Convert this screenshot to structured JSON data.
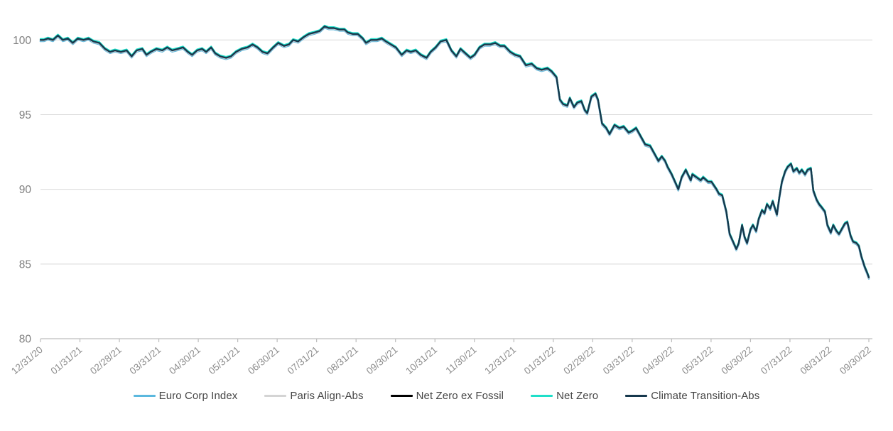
{
  "page": {
    "background_color": "#ffffff"
  },
  "chart_data": {
    "type": "line",
    "title": "",
    "xlabel": "",
    "ylabel": "",
    "grid": "horizontal",
    "legend_position": "bottom",
    "ylim": [
      80,
      102.2
    ],
    "y_ticks": [
      80,
      85,
      90,
      95,
      100
    ],
    "x_tick_labels": [
      "12/31/20",
      "01/31/21",
      "02/28/21",
      "03/31/21",
      "04/30/21",
      "05/31/21",
      "06/30/21",
      "07/31/21",
      "08/31/21",
      "09/30/21",
      "10/31/21",
      "11/30/21",
      "12/31/21",
      "01/31/22",
      "02/28/22",
      "03/31/22",
      "04/30/22",
      "05/31/22",
      "06/30/22",
      "07/31/22",
      "08/31/22",
      "09/30/22"
    ],
    "axis_color": "#bdbdbd",
    "gridline_color": "#d9d9d9",
    "tick_label_color": "#8c8c8c",
    "legend_text_color": "#464646",
    "series": [
      {
        "name": "Euro Corp Index",
        "color": "#5bb8de"
      },
      {
        "name": "Paris Align-Abs",
        "color": "#d4d4d4"
      },
      {
        "name": "Net Zero ex Fossil",
        "color": "#000000"
      },
      {
        "name": "Net Zero",
        "color": "#1fdfc9"
      },
      {
        "name": "Climate Transition-Abs",
        "color": "#16384d"
      }
    ],
    "series_overlap_note": "All five series plot within ~0.1 index points of each other for the whole period; they share the common shape below (x = fraction of time axis from 12/31/20 to 09/30/22, v = index level, base 100).",
    "points": [
      [
        0.0,
        100.0
      ],
      [
        0.004,
        100.0
      ],
      [
        0.009,
        100.1
      ],
      [
        0.015,
        100.0
      ],
      [
        0.021,
        100.3
      ],
      [
        0.027,
        100.0
      ],
      [
        0.033,
        100.1
      ],
      [
        0.039,
        99.8
      ],
      [
        0.045,
        100.1
      ],
      [
        0.052,
        100.0
      ],
      [
        0.058,
        100.1
      ],
      [
        0.064,
        99.9
      ],
      [
        0.071,
        99.8
      ],
      [
        0.078,
        99.4
      ],
      [
        0.084,
        99.2
      ],
      [
        0.09,
        99.3
      ],
      [
        0.097,
        99.2
      ],
      [
        0.104,
        99.3
      ],
      [
        0.11,
        98.9
      ],
      [
        0.116,
        99.3
      ],
      [
        0.123,
        99.4
      ],
      [
        0.128,
        99.0
      ],
      [
        0.133,
        99.2
      ],
      [
        0.14,
        99.4
      ],
      [
        0.147,
        99.3
      ],
      [
        0.153,
        99.5
      ],
      [
        0.159,
        99.3
      ],
      [
        0.166,
        99.4
      ],
      [
        0.172,
        99.5
      ],
      [
        0.178,
        99.2
      ],
      [
        0.183,
        99.0
      ],
      [
        0.189,
        99.3
      ],
      [
        0.195,
        99.4
      ],
      [
        0.2,
        99.2
      ],
      [
        0.206,
        99.5
      ],
      [
        0.211,
        99.1
      ],
      [
        0.217,
        98.9
      ],
      [
        0.224,
        98.8
      ],
      [
        0.23,
        98.9
      ],
      [
        0.236,
        99.2
      ],
      [
        0.243,
        99.4
      ],
      [
        0.25,
        99.5
      ],
      [
        0.256,
        99.7
      ],
      [
        0.262,
        99.5
      ],
      [
        0.268,
        99.2
      ],
      [
        0.274,
        99.1
      ],
      [
        0.281,
        99.5
      ],
      [
        0.287,
        99.8
      ],
      [
        0.294,
        99.6
      ],
      [
        0.3,
        99.7
      ],
      [
        0.305,
        100.0
      ],
      [
        0.311,
        99.9
      ],
      [
        0.318,
        100.2
      ],
      [
        0.324,
        100.4
      ],
      [
        0.331,
        100.5
      ],
      [
        0.337,
        100.6
      ],
      [
        0.343,
        100.9
      ],
      [
        0.348,
        100.8
      ],
      [
        0.354,
        100.8
      ],
      [
        0.361,
        100.7
      ],
      [
        0.367,
        100.7
      ],
      [
        0.371,
        100.5
      ],
      [
        0.377,
        100.4
      ],
      [
        0.383,
        100.4
      ],
      [
        0.389,
        100.1
      ],
      [
        0.393,
        99.8
      ],
      [
        0.399,
        100.0
      ],
      [
        0.406,
        100.0
      ],
      [
        0.412,
        100.1
      ],
      [
        0.417,
        99.9
      ],
      [
        0.423,
        99.7
      ],
      [
        0.429,
        99.5
      ],
      [
        0.436,
        99.0
      ],
      [
        0.442,
        99.3
      ],
      [
        0.447,
        99.2
      ],
      [
        0.453,
        99.3
      ],
      [
        0.459,
        99.0
      ],
      [
        0.466,
        98.8
      ],
      [
        0.471,
        99.2
      ],
      [
        0.477,
        99.5
      ],
      [
        0.483,
        99.9
      ],
      [
        0.49,
        100.0
      ],
      [
        0.496,
        99.3
      ],
      [
        0.502,
        98.9
      ],
      [
        0.507,
        99.4
      ],
      [
        0.513,
        99.1
      ],
      [
        0.519,
        98.8
      ],
      [
        0.524,
        99.0
      ],
      [
        0.53,
        99.5
      ],
      [
        0.536,
        99.7
      ],
      [
        0.543,
        99.7
      ],
      [
        0.549,
        99.8
      ],
      [
        0.555,
        99.6
      ],
      [
        0.56,
        99.6
      ],
      [
        0.567,
        99.2
      ],
      [
        0.573,
        99.0
      ],
      [
        0.579,
        98.9
      ],
      [
        0.586,
        98.3
      ],
      [
        0.593,
        98.4
      ],
      [
        0.599,
        98.1
      ],
      [
        0.605,
        98.0
      ],
      [
        0.612,
        98.1
      ],
      [
        0.617,
        97.9
      ],
      [
        0.623,
        97.5
      ],
      [
        0.627,
        96.0
      ],
      [
        0.631,
        95.7
      ],
      [
        0.636,
        95.6
      ],
      [
        0.639,
        96.1
      ],
      [
        0.644,
        95.5
      ],
      [
        0.648,
        95.8
      ],
      [
        0.653,
        95.9
      ],
      [
        0.657,
        95.3
      ],
      [
        0.66,
        95.1
      ],
      [
        0.665,
        96.2
      ],
      [
        0.67,
        96.4
      ],
      [
        0.673,
        96.0
      ],
      [
        0.678,
        94.4
      ],
      [
        0.683,
        94.1
      ],
      [
        0.687,
        93.7
      ],
      [
        0.693,
        94.3
      ],
      [
        0.699,
        94.1
      ],
      [
        0.704,
        94.2
      ],
      [
        0.71,
        93.8
      ],
      [
        0.714,
        93.9
      ],
      [
        0.719,
        94.1
      ],
      [
        0.725,
        93.5
      ],
      [
        0.73,
        93.0
      ],
      [
        0.736,
        92.9
      ],
      [
        0.742,
        92.3
      ],
      [
        0.746,
        91.9
      ],
      [
        0.75,
        92.2
      ],
      [
        0.754,
        91.9
      ],
      [
        0.757,
        91.5
      ],
      [
        0.762,
        91.0
      ],
      [
        0.766,
        90.5
      ],
      [
        0.77,
        90.0
      ],
      [
        0.774,
        90.8
      ],
      [
        0.779,
        91.3
      ],
      [
        0.785,
        90.6
      ],
      [
        0.787,
        91.0
      ],
      [
        0.792,
        90.8
      ],
      [
        0.797,
        90.6
      ],
      [
        0.8,
        90.8
      ],
      [
        0.806,
        90.5
      ],
      [
        0.81,
        90.5
      ],
      [
        0.816,
        90.0
      ],
      [
        0.819,
        89.7
      ],
      [
        0.823,
        89.6
      ],
      [
        0.828,
        88.5
      ],
      [
        0.832,
        87.0
      ],
      [
        0.836,
        86.5
      ],
      [
        0.84,
        86.0
      ],
      [
        0.843,
        86.4
      ],
      [
        0.847,
        87.6
      ],
      [
        0.85,
        86.8
      ],
      [
        0.853,
        86.4
      ],
      [
        0.857,
        87.3
      ],
      [
        0.86,
        87.6
      ],
      [
        0.864,
        87.2
      ],
      [
        0.867,
        88.0
      ],
      [
        0.871,
        88.6
      ],
      [
        0.874,
        88.4
      ],
      [
        0.877,
        89.0
      ],
      [
        0.881,
        88.7
      ],
      [
        0.884,
        89.2
      ],
      [
        0.889,
        88.3
      ],
      [
        0.892,
        89.5
      ],
      [
        0.895,
        90.5
      ],
      [
        0.899,
        91.2
      ],
      [
        0.902,
        91.5
      ],
      [
        0.906,
        91.7
      ],
      [
        0.909,
        91.2
      ],
      [
        0.913,
        91.4
      ],
      [
        0.916,
        91.1
      ],
      [
        0.919,
        91.3
      ],
      [
        0.923,
        91.0
      ],
      [
        0.926,
        91.3
      ],
      [
        0.93,
        91.4
      ],
      [
        0.933,
        89.9
      ],
      [
        0.937,
        89.3
      ],
      [
        0.94,
        89.0
      ],
      [
        0.943,
        88.8
      ],
      [
        0.947,
        88.5
      ],
      [
        0.95,
        87.6
      ],
      [
        0.954,
        87.1
      ],
      [
        0.957,
        87.6
      ],
      [
        0.961,
        87.2
      ],
      [
        0.964,
        87.0
      ],
      [
        0.967,
        87.3
      ],
      [
        0.971,
        87.7
      ],
      [
        0.974,
        87.8
      ],
      [
        0.978,
        86.9
      ],
      [
        0.981,
        86.5
      ],
      [
        0.985,
        86.4
      ],
      [
        0.988,
        86.2
      ],
      [
        0.991,
        85.5
      ],
      [
        0.995,
        84.8
      ],
      [
        0.998,
        84.4
      ],
      [
        1.0,
        84.1
      ]
    ]
  }
}
